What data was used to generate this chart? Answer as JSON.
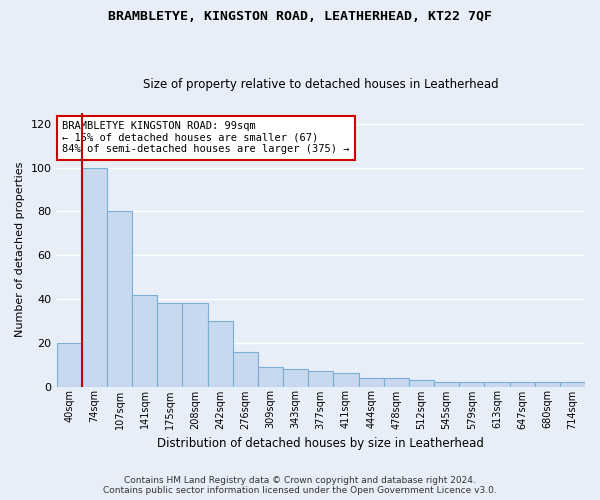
{
  "title": "BRAMBLETYE, KINGSTON ROAD, LEATHERHEAD, KT22 7QF",
  "subtitle": "Size of property relative to detached houses in Leatherhead",
  "xlabel": "Distribution of detached houses by size in Leatherhead",
  "ylabel": "Number of detached properties",
  "footer1": "Contains HM Land Registry data © Crown copyright and database right 2024.",
  "footer2": "Contains public sector information licensed under the Open Government Licence v3.0.",
  "annotation_line1": "BRAMBLETYE KINGSTON ROAD: 99sqm",
  "annotation_line2": "← 15% of detached houses are smaller (67)",
  "annotation_line3": "84% of semi-detached houses are larger (375) →",
  "bar_labels": [
    "40sqm",
    "74sqm",
    "107sqm",
    "141sqm",
    "175sqm",
    "208sqm",
    "242sqm",
    "276sqm",
    "309sqm",
    "343sqm",
    "377sqm",
    "411sqm",
    "444sqm",
    "478sqm",
    "512sqm",
    "545sqm",
    "579sqm",
    "613sqm",
    "647sqm",
    "680sqm",
    "714sqm"
  ],
  "bar_values": [
    20,
    100,
    80,
    42,
    38,
    38,
    30,
    16,
    9,
    8,
    7,
    6,
    4,
    4,
    3,
    2,
    2,
    2,
    2,
    2,
    2
  ],
  "bar_color": "#c8d8ee",
  "bar_edge_color": "#7aafd4",
  "vline_x": 0.5,
  "vline_color": "#cc0000",
  "annotation_box_color": "#cc0000",
  "ylim": [
    0,
    125
  ],
  "yticks": [
    0,
    20,
    40,
    60,
    80,
    100,
    120
  ],
  "background_color": "#e8eef8",
  "plot_bg_color": "#e8eef8",
  "grid_color": "#ffffff"
}
